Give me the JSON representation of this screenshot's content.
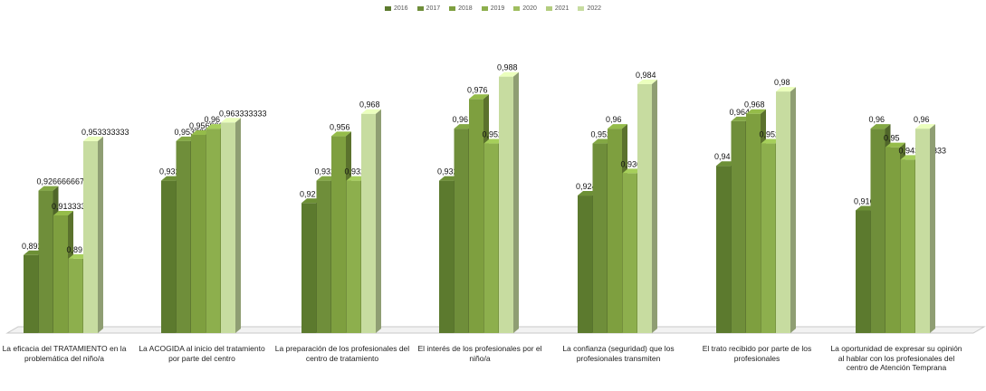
{
  "chart_data": {
    "type": "bar",
    "style": "3d-clustered-column",
    "legend_position": "top-center",
    "grid": false,
    "ylim": [
      0.85,
      1.0
    ],
    "series": [
      {
        "name": "2016",
        "color": "#5c7a2e"
      },
      {
        "name": "2017",
        "color": "#6f8e3a"
      },
      {
        "name": "2018",
        "color": "#7e9f3f"
      },
      {
        "name": "2019",
        "color": "#8daf4d"
      },
      {
        "name": "2020",
        "color": "#9fbe5f"
      },
      {
        "name": "2021",
        "color": "#b3cd7f"
      },
      {
        "name": "2022",
        "color": "#c7dca0"
      }
    ],
    "groups": [
      {
        "category": "La eficacia del TRATAMIENTO en la problemática del niño/a",
        "bars": [
          {
            "series": "2016",
            "value": 0.892,
            "label": "0,892"
          },
          {
            "series": "2017",
            "value": 0.926666667,
            "label": "0,926666667"
          },
          {
            "series": "2018",
            "value": 0.913333333,
            "label": "0,913333333"
          },
          {
            "series": "2019",
            "value": 0.89,
            "label": "0,89"
          },
          {
            "series": "2022",
            "value": 0.953333333,
            "label": "0,953333333"
          }
        ]
      },
      {
        "category": "La ACOGIDA al inicio del tratamiento por parte del centro",
        "bars": [
          {
            "series": "2016",
            "value": 0.932,
            "label": "0,932"
          },
          {
            "series": "2017",
            "value": 0.953333333,
            "label": "0,953333333"
          },
          {
            "series": "2018",
            "value": 0.956666667,
            "label": "0,956666667"
          },
          {
            "series": "2019",
            "value": 0.96,
            "label": "0,96"
          },
          {
            "series": "2022",
            "value": 0.963333333,
            "label": "0,963333333"
          }
        ]
      },
      {
        "category": "La preparación de los profesionales del centro de tratamiento",
        "bars": [
          {
            "series": "2016",
            "value": 0.92,
            "label": "0,92"
          },
          {
            "series": "2017",
            "value": 0.932,
            "label": "0,932"
          },
          {
            "series": "2018",
            "value": 0.956,
            "label": "0,956"
          },
          {
            "series": "2019",
            "value": 0.932,
            "label": "0,932"
          },
          {
            "series": "2022",
            "value": 0.968,
            "label": "0,968"
          }
        ]
      },
      {
        "category": "El interés de los profesionales por el niño/a",
        "bars": [
          {
            "series": "2016",
            "value": 0.932,
            "label": "0,932"
          },
          {
            "series": "2017",
            "value": 0.96,
            "label": "0,96"
          },
          {
            "series": "2018",
            "value": 0.976,
            "label": "0,976"
          },
          {
            "series": "2019",
            "value": 0.952,
            "label": "0,952"
          },
          {
            "series": "2022",
            "value": 0.988,
            "label": "0,988"
          }
        ]
      },
      {
        "category": "La confianza (seguridad) que los profesionales transmiten",
        "bars": [
          {
            "series": "2016",
            "value": 0.924,
            "label": "0,924"
          },
          {
            "series": "2017",
            "value": 0.952,
            "label": "0,952"
          },
          {
            "series": "2018",
            "value": 0.96,
            "label": "0,96"
          },
          {
            "series": "2019",
            "value": 0.936,
            "label": "0,936"
          },
          {
            "series": "2022",
            "value": 0.984,
            "label": "0,984"
          }
        ]
      },
      {
        "category": "El trato recibido por parte de los profesionales",
        "bars": [
          {
            "series": "2016",
            "value": 0.94,
            "label": "0,94"
          },
          {
            "series": "2017",
            "value": 0.964,
            "label": "0,964"
          },
          {
            "series": "2018",
            "value": 0.968,
            "label": "0,968"
          },
          {
            "series": "2019",
            "value": 0.952,
            "label": "0,952"
          },
          {
            "series": "2022",
            "value": 0.98,
            "label": "0,98"
          }
        ]
      },
      {
        "category": "La oportunidad de expresar su opinión al hablar con los profesionales del centro de Atención Temprana",
        "bars": [
          {
            "series": "2016",
            "value": 0.916,
            "label": "0,916"
          },
          {
            "series": "2017",
            "value": 0.96,
            "label": "0,96"
          },
          {
            "series": "2018",
            "value": 0.95,
            "label": "0,95"
          },
          {
            "series": "2019",
            "value": 0.943333333,
            "label": "0,943333333"
          },
          {
            "series": "2022",
            "value": 0.96,
            "label": "0,96"
          }
        ]
      }
    ]
  }
}
